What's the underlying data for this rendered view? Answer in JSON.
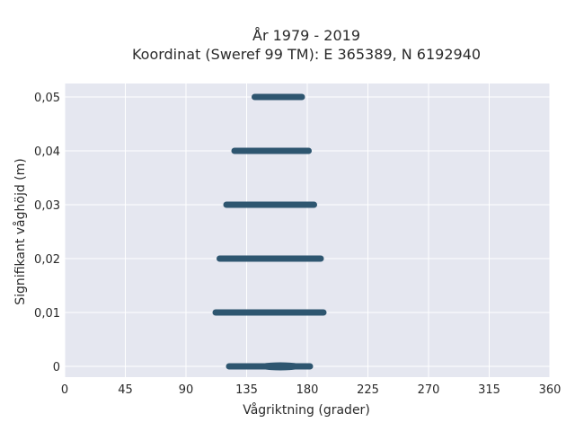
{
  "chart_data": {
    "type": "scatter",
    "title": [
      "År 1979 - 2019",
      "Koordinat (Sweref 99 TM): E 365389, N 6192940"
    ],
    "xlabel": "Vågriktning (grader)",
    "ylabel": "Signifikant våghöjd (m)",
    "xlim": [
      0,
      360
    ],
    "ylim": [
      -0.002,
      0.0525
    ],
    "xticks": [
      0,
      45,
      90,
      135,
      180,
      225,
      270,
      315,
      360
    ],
    "xtick_labels": [
      "0",
      "45",
      "90",
      "135",
      "180",
      "225",
      "270",
      "315",
      "360"
    ],
    "yticks": [
      0,
      0.01,
      0.02,
      0.03,
      0.04,
      0.05
    ],
    "ytick_labels": [
      "0",
      "0,01",
      "0,02",
      "0,03",
      "0,04",
      "0,05"
    ],
    "grid": true,
    "marker_color": "#2e5670",
    "plot_background": "#e5e7f0",
    "series": [
      {
        "y": 0.0,
        "x_from": 122,
        "x_to": 182
      },
      {
        "y": 0.01,
        "x_from": 112,
        "x_to": 192
      },
      {
        "y": 0.02,
        "x_from": 115,
        "x_to": 190
      },
      {
        "y": 0.03,
        "x_from": 120,
        "x_to": 185
      },
      {
        "y": 0.04,
        "x_from": 126,
        "x_to": 181
      },
      {
        "y": 0.05,
        "x_from": 141,
        "x_to": 176
      }
    ]
  }
}
